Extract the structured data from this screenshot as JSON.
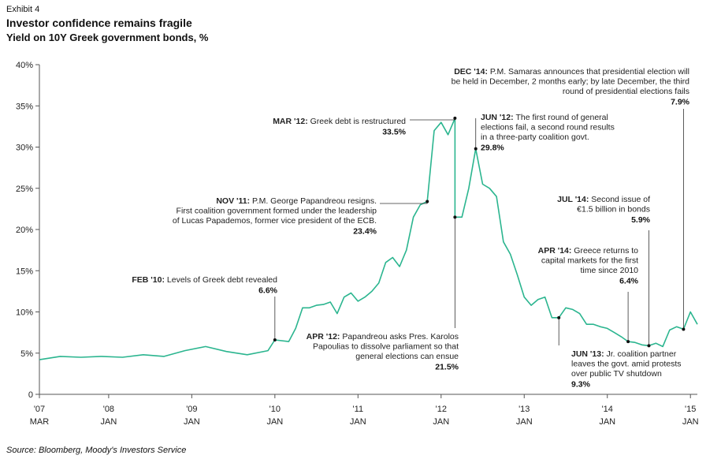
{
  "header": {
    "exhibit": "Exhibit 4",
    "title": "Investor confidence remains fragile",
    "subtitle": "Yield on 10Y Greek government bonds, %"
  },
  "footer": {
    "source": "Source: Bloomberg, Moody's Investors Service"
  },
  "colors": {
    "line": "#2bb58f",
    "axis": "#555555",
    "leader": "#333333"
  },
  "chart_data": {
    "type": "line",
    "title": "Investor confidence remains fragile",
    "subtitle": "Yield on 10Y Greek government bonds, %",
    "xlabel": "",
    "ylabel": "",
    "ylim": [
      0,
      40
    ],
    "xlim": [
      "2007-03",
      "2015-02"
    ],
    "grid": false,
    "y_ticks": [
      0,
      5,
      10,
      15,
      20,
      25,
      30,
      35,
      40
    ],
    "y_tick_labels": [
      "0",
      "5%",
      "10%",
      "15%",
      "20%",
      "25%",
      "30%",
      "35%",
      "40%"
    ],
    "x_ticks": [
      {
        "x": "2007-03",
        "year": "'07",
        "month": "MAR"
      },
      {
        "x": "2008-01",
        "year": "'08",
        "month": "JAN"
      },
      {
        "x": "2009-01",
        "year": "'09",
        "month": "JAN"
      },
      {
        "x": "2010-01",
        "year": "'10",
        "month": "JAN"
      },
      {
        "x": "2011-01",
        "year": "'11",
        "month": "JAN"
      },
      {
        "x": "2012-01",
        "year": "'12",
        "month": "JAN"
      },
      {
        "x": "2013-01",
        "year": "'13",
        "month": "JAN"
      },
      {
        "x": "2014-01",
        "year": "'14",
        "month": "JAN"
      },
      {
        "x": "2015-01",
        "year": "'15",
        "month": "JAN"
      }
    ],
    "series": [
      {
        "name": "",
        "points": [
          [
            "2007-03",
            4.2
          ],
          [
            "2007-06",
            4.6
          ],
          [
            "2007-09",
            4.5
          ],
          [
            "2007-12",
            4.6
          ],
          [
            "2008-03",
            4.5
          ],
          [
            "2008-06",
            4.8
          ],
          [
            "2008-09",
            4.6
          ],
          [
            "2008-12",
            5.3
          ],
          [
            "2009-03",
            5.8
          ],
          [
            "2009-06",
            5.2
          ],
          [
            "2009-09",
            4.8
          ],
          [
            "2009-12",
            5.3
          ],
          [
            "2010-01",
            6.6
          ],
          [
            "2010-03",
            6.4
          ],
          [
            "2010-04",
            8.0
          ],
          [
            "2010-05",
            10.5
          ],
          [
            "2010-06",
            10.5
          ],
          [
            "2010-07",
            10.8
          ],
          [
            "2010-08",
            10.9
          ],
          [
            "2010-09",
            11.2
          ],
          [
            "2010-10",
            9.8
          ],
          [
            "2010-11",
            11.8
          ],
          [
            "2010-12",
            12.3
          ],
          [
            "2011-01",
            11.3
          ],
          [
            "2011-02",
            11.8
          ],
          [
            "2011-03",
            12.5
          ],
          [
            "2011-04",
            13.5
          ],
          [
            "2011-05",
            16.0
          ],
          [
            "2011-06",
            16.6
          ],
          [
            "2011-07",
            15.5
          ],
          [
            "2011-08",
            17.5
          ],
          [
            "2011-09",
            21.5
          ],
          [
            "2011-10",
            23.0
          ],
          [
            "2011-11",
            23.4
          ],
          [
            "2011-12",
            32.0
          ],
          [
            "2012-01",
            33.0
          ],
          [
            "2012-02",
            31.5
          ],
          [
            "2012-03",
            33.5
          ],
          [
            "2012-03",
            21.5
          ],
          [
            "2012-04",
            21.5
          ],
          [
            "2012-05",
            25.0
          ],
          [
            "2012-06",
            29.8
          ],
          [
            "2012-07",
            25.5
          ],
          [
            "2012-08",
            25.0
          ],
          [
            "2012-09",
            24.0
          ],
          [
            "2012-10",
            18.5
          ],
          [
            "2012-11",
            17.0
          ],
          [
            "2012-12",
            14.5
          ],
          [
            "2013-01",
            11.8
          ],
          [
            "2013-02",
            10.8
          ],
          [
            "2013-03",
            11.5
          ],
          [
            "2013-04",
            11.8
          ],
          [
            "2013-05",
            9.3
          ],
          [
            "2013-06",
            9.3
          ],
          [
            "2013-07",
            10.5
          ],
          [
            "2013-08",
            10.3
          ],
          [
            "2013-09",
            9.8
          ],
          [
            "2013-10",
            8.5
          ],
          [
            "2013-11",
            8.5
          ],
          [
            "2013-12",
            8.2
          ],
          [
            "2014-01",
            8.0
          ],
          [
            "2014-02",
            7.5
          ],
          [
            "2014-03",
            7.0
          ],
          [
            "2014-04",
            6.4
          ],
          [
            "2014-05",
            6.3
          ],
          [
            "2014-06",
            6.0
          ],
          [
            "2014-07",
            5.9
          ],
          [
            "2014-08",
            6.2
          ],
          [
            "2014-09",
            5.8
          ],
          [
            "2014-10",
            7.8
          ],
          [
            "2014-11",
            8.2
          ],
          [
            "2014-12",
            7.9
          ],
          [
            "2015-01",
            10.0
          ],
          [
            "2015-02",
            8.5
          ]
        ]
      }
    ],
    "annotations": [
      {
        "x": "2010-01",
        "y": 6.6,
        "head": "FEB '10:",
        "lines": [
          "Levels of Greek debt revealed"
        ],
        "value": "6.6%"
      },
      {
        "x": "2011-11",
        "y": 23.4,
        "head": "NOV '11:",
        "lines": [
          "P.M. George Papandreou resigns.",
          "First coalition government formed under the leadership",
          "of Lucas Papademos, former vice president of the ECB."
        ],
        "value": "23.4%"
      },
      {
        "x": "2012-03",
        "y": 33.5,
        "head": "MAR '12:",
        "lines": [
          "Greek debt is restructured"
        ],
        "value": "33.5%"
      },
      {
        "x": "2012-03",
        "y": 21.5,
        "head": "APR '12:",
        "lines": [
          "Papandreou asks Pres. Karolos",
          "Papoulias to dissolve parliament so that",
          "general elections can ensue"
        ],
        "value": "21.5%"
      },
      {
        "x": "2012-06",
        "y": 29.8,
        "head": "JUN '12:",
        "lines": [
          "The first round of general",
          "elections fail, a second round results",
          "in a three-party coalition govt."
        ],
        "value": "29.8%"
      },
      {
        "x": "2013-06",
        "y": 9.3,
        "head": "JUN '13:",
        "lines": [
          "Jr. coalition partner",
          "leaves the govt. amid protests",
          "over public TV shutdown"
        ],
        "value": "9.3%"
      },
      {
        "x": "2014-04",
        "y": 6.4,
        "head": "APR '14:",
        "lines": [
          "Greece returns to",
          "capital  markets for the first",
          "time since 2010"
        ],
        "value": "6.4%"
      },
      {
        "x": "2014-07",
        "y": 5.9,
        "head": "JUL '14:",
        "lines": [
          "Second issue of",
          "€1.5 billion in bonds"
        ],
        "value": "5.9%"
      },
      {
        "x": "2014-12",
        "y": 7.9,
        "head": "DEC '14:",
        "lines": [
          "P.M. Samaras announces that presidential election will",
          "be held in December, 2 months early; by late December, the third",
          "round of presidential elections fails"
        ],
        "value": "7.9%"
      }
    ]
  }
}
